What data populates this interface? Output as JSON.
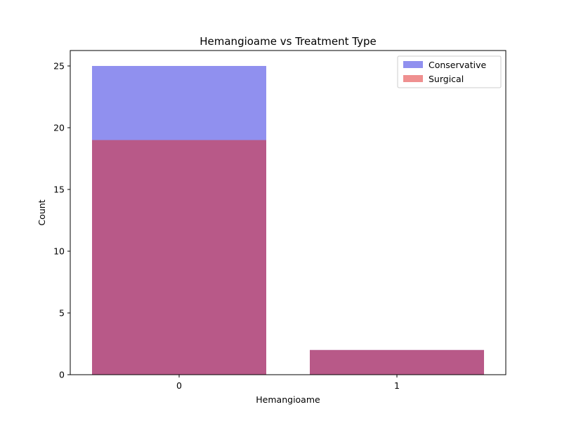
{
  "chart_data": {
    "type": "bar",
    "title": "Hemangioame vs Treatment Type",
    "xlabel": "Hemangioame",
    "ylabel": "Count",
    "categories": [
      "0",
      "1"
    ],
    "series": [
      {
        "name": "Conservative",
        "values": [
          25,
          2
        ],
        "color": "#2222e0",
        "opacity": 0.5
      },
      {
        "name": "Surgical",
        "values": [
          19,
          2
        ],
        "color": "#e02222",
        "opacity": 0.5
      }
    ],
    "ylim": [
      0,
      26.25
    ],
    "yticks": [
      0,
      5,
      10,
      15,
      20,
      25
    ],
    "grid": false,
    "legend_position": "top-right",
    "overlay": true
  }
}
